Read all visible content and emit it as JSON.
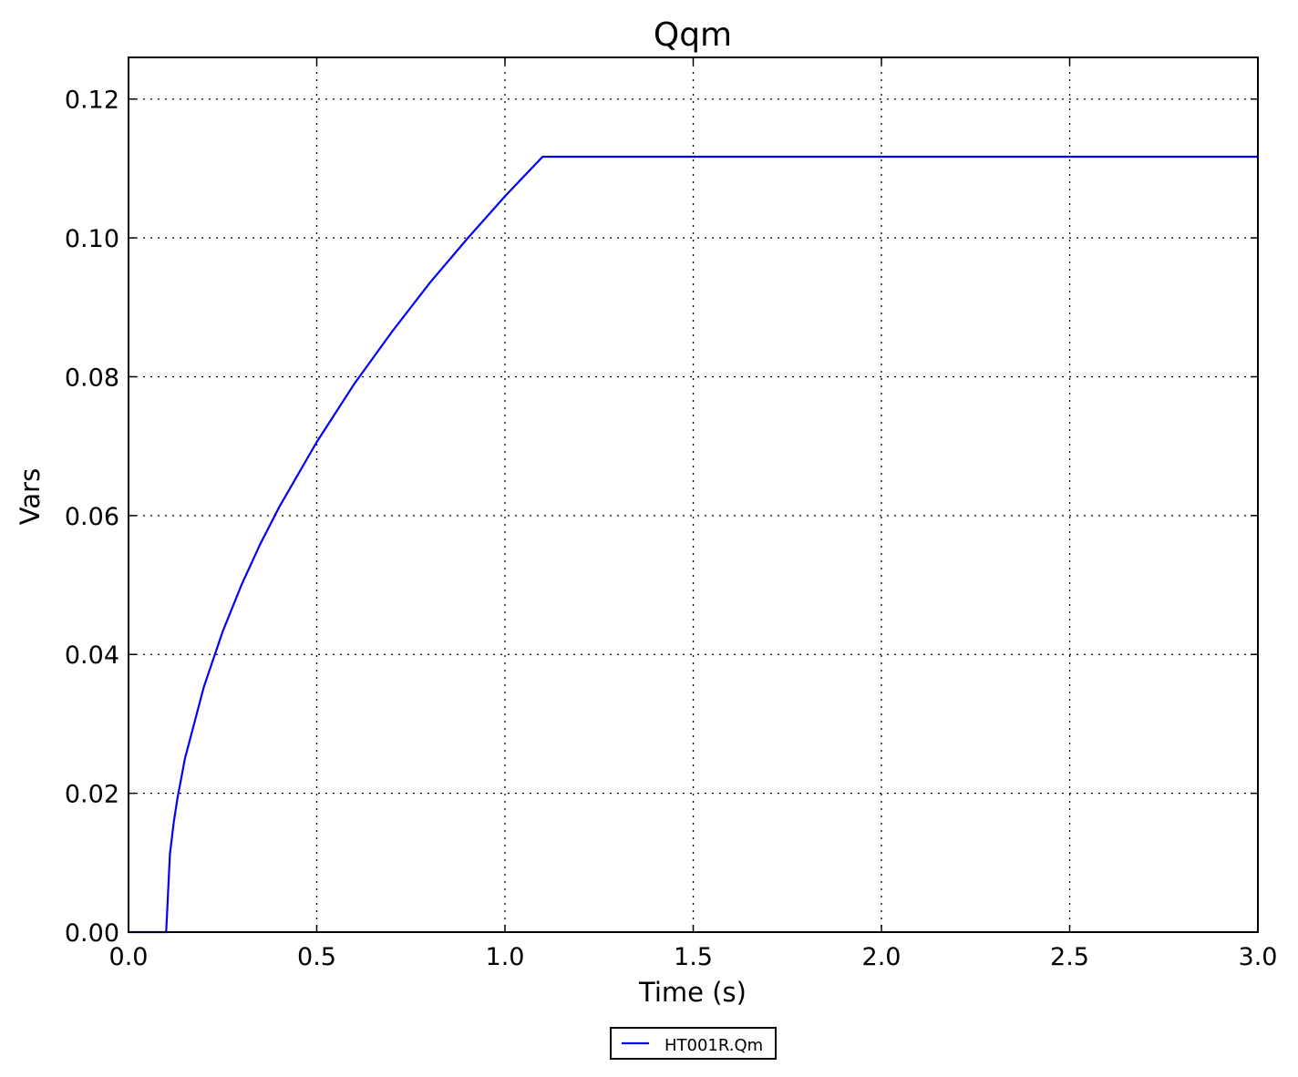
{
  "chart_data": {
    "type": "line",
    "title": "Qqm",
    "xlabel": "Time (s)",
    "ylabel": "Vars",
    "xlim": [
      0,
      3.0
    ],
    "ylim": [
      0,
      0.126
    ],
    "xticks": [
      "0.0",
      "0.5",
      "1.0",
      "1.5",
      "2.0",
      "2.5",
      "3.0"
    ],
    "yticks": [
      "0.00",
      "0.02",
      "0.04",
      "0.06",
      "0.08",
      "0.10",
      "0.12"
    ],
    "grid": true,
    "legend_position": "bottom-center-outside",
    "series": [
      {
        "name": "HT001R.Qm",
        "color": "#0000ff",
        "x": [
          0,
          0.1,
          0.11,
          0.12,
          0.13,
          0.15,
          0.2,
          0.25,
          0.3,
          0.35,
          0.4,
          0.5,
          0.6,
          0.7,
          0.8,
          0.9,
          1.0,
          1.1,
          3.0
        ],
        "y": [
          0,
          0,
          0.0112,
          0.0158,
          0.0193,
          0.025,
          0.0353,
          0.0433,
          0.05,
          0.0559,
          0.0612,
          0.0706,
          0.079,
          0.0865,
          0.0935,
          0.0999,
          0.106,
          0.1117,
          0.1117
        ]
      }
    ]
  }
}
